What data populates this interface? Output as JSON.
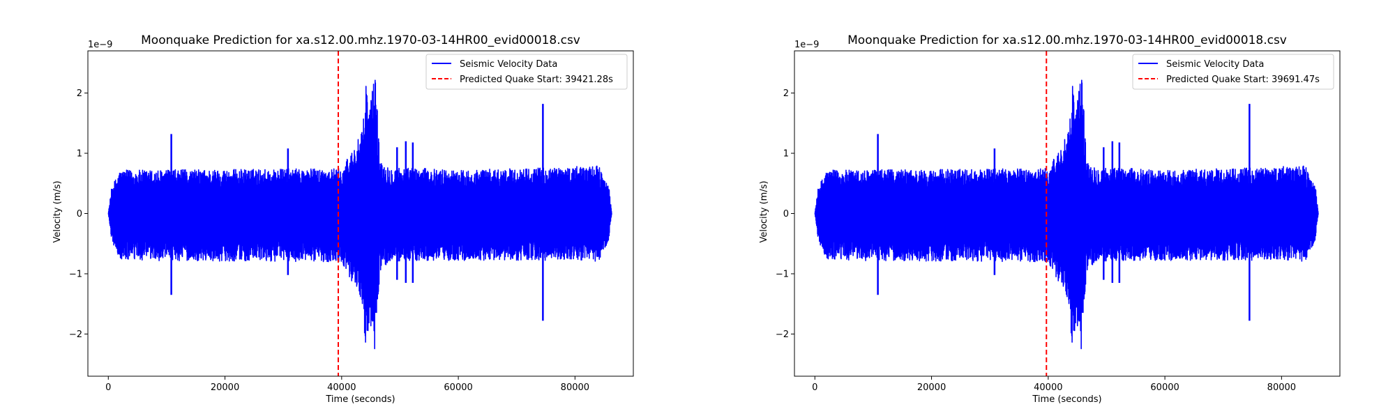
{
  "chart_data": [
    {
      "type": "line",
      "title": "Moonquake Prediction for xa.s12.00.mhz.1970-03-14HR00_evid00018.csv",
      "xlabel": "Time (seconds)",
      "ylabel": "Velocity (m/s)",
      "y_offset_label": "1e−9",
      "xlim": [
        -3500,
        90000
      ],
      "ylim": [
        -2.7,
        2.7
      ],
      "xticks": [
        0,
        20000,
        40000,
        60000,
        80000
      ],
      "xtick_labels": [
        "0",
        "20000",
        "40000",
        "60000",
        "80000"
      ],
      "yticks": [
        2,
        1,
        0,
        -1,
        -2
      ],
      "ytick_labels": [
        "2",
        "1",
        "0",
        "−1",
        "−2"
      ],
      "grid": false,
      "legend_position": "top-right",
      "series": [
        {
          "name": "Seismic Velocity Data",
          "color": "#0000ff",
          "style": "solid",
          "x": [
            0,
            600,
            2000,
            40000,
            43500,
            44200,
            44800,
            45200,
            45800,
            46500,
            48000,
            60000,
            80000,
            84000,
            85800,
            86300
          ],
          "y_upper": [
            0,
            0.45,
            0.72,
            0.75,
            1.35,
            2.22,
            1.75,
            2.05,
            2.45,
            0.95,
            0.78,
            0.72,
            0.78,
            0.8,
            0.45,
            0
          ],
          "y_lower": [
            0,
            -0.45,
            -0.78,
            -0.8,
            -1.45,
            -2.35,
            -1.75,
            -2.1,
            -2.45,
            -1.0,
            -0.8,
            -0.78,
            -0.78,
            -0.8,
            -0.45,
            0
          ],
          "spikes": [
            {
              "x": 10800,
              "y_high": 1.32,
              "y_low": -1.35
            },
            {
              "x": 30800,
              "y_high": 1.08,
              "y_low": -1.02
            },
            {
              "x": 49500,
              "y_high": 1.1,
              "y_low": -1.1
            },
            {
              "x": 51000,
              "y_high": 1.2,
              "y_low": -1.15
            },
            {
              "x": 52200,
              "y_high": 1.18,
              "y_low": -1.15
            },
            {
              "x": 74500,
              "y_high": 1.82,
              "y_low": -1.78
            }
          ]
        },
        {
          "name": "Predicted Quake Start: 39421.28s",
          "color": "#ff0000",
          "style": "dashed",
          "x": [
            39421.28,
            39421.28
          ],
          "y": [
            -2.7,
            2.7
          ]
        }
      ]
    },
    {
      "type": "line",
      "title": "Moonquake Prediction for xa.s12.00.mhz.1970-03-14HR00_evid00018.csv",
      "xlabel": "Time (seconds)",
      "ylabel": "Velocity (m/s)",
      "y_offset_label": "1e−9",
      "xlim": [
        -3500,
        90000
      ],
      "ylim": [
        -2.7,
        2.7
      ],
      "xticks": [
        0,
        20000,
        40000,
        60000,
        80000
      ],
      "xtick_labels": [
        "0",
        "20000",
        "40000",
        "60000",
        "80000"
      ],
      "yticks": [
        2,
        1,
        0,
        -1,
        -2
      ],
      "ytick_labels": [
        "2",
        "1",
        "0",
        "−1",
        "−2"
      ],
      "grid": false,
      "legend_position": "top-right",
      "series": [
        {
          "name": "Seismic Velocity Data",
          "color": "#0000ff",
          "style": "solid",
          "x": [
            0,
            600,
            2000,
            40000,
            43500,
            44200,
            44800,
            45200,
            45800,
            46500,
            48000,
            60000,
            80000,
            84000,
            85800,
            86300
          ],
          "y_upper": [
            0,
            0.45,
            0.72,
            0.75,
            1.35,
            2.22,
            1.75,
            2.05,
            2.45,
            0.95,
            0.78,
            0.72,
            0.78,
            0.8,
            0.45,
            0
          ],
          "y_lower": [
            0,
            -0.45,
            -0.78,
            -0.8,
            -1.45,
            -2.35,
            -1.75,
            -2.1,
            -2.45,
            -1.0,
            -0.8,
            -0.78,
            -0.78,
            -0.8,
            -0.45,
            0
          ],
          "spikes": [
            {
              "x": 10800,
              "y_high": 1.32,
              "y_low": -1.35
            },
            {
              "x": 30800,
              "y_high": 1.08,
              "y_low": -1.02
            },
            {
              "x": 49500,
              "y_high": 1.1,
              "y_low": -1.1
            },
            {
              "x": 51000,
              "y_high": 1.2,
              "y_low": -1.15
            },
            {
              "x": 52200,
              "y_high": 1.18,
              "y_low": -1.15
            },
            {
              "x": 74500,
              "y_high": 1.82,
              "y_low": -1.78
            }
          ]
        },
        {
          "name": "Predicted Quake Start: 39691.47s",
          "color": "#ff0000",
          "style": "dashed",
          "x": [
            39691.47,
            39691.47
          ],
          "y": [
            -2.7,
            2.7
          ]
        }
      ]
    }
  ]
}
